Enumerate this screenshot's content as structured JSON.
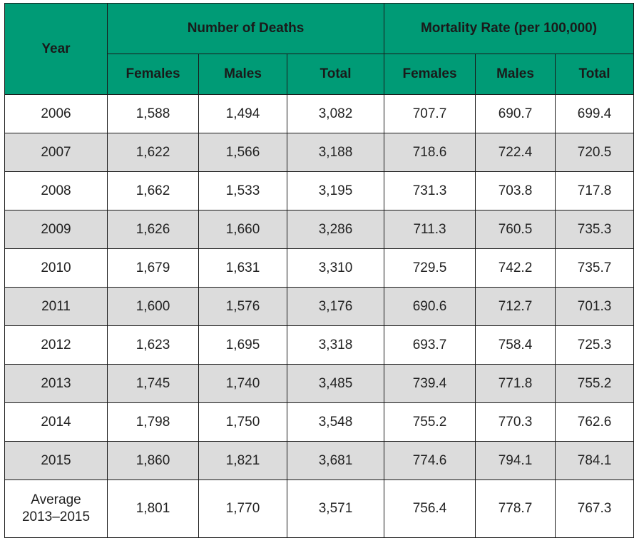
{
  "table": {
    "header": {
      "year": "Year",
      "deaths_group": "Number of Deaths",
      "rate_group": "Mortality Rate (per 100,000)",
      "sub": [
        "Females",
        "Males",
        "Total",
        "Females",
        "Males",
        "Total"
      ]
    },
    "rows": [
      {
        "year": "2006",
        "cells": [
          "1,588",
          "1,494",
          "3,082",
          "707.7",
          "690.7",
          "699.4"
        ]
      },
      {
        "year": "2007",
        "cells": [
          "1,622",
          "1,566",
          "3,188",
          "718.6",
          "722.4",
          "720.5"
        ]
      },
      {
        "year": "2008",
        "cells": [
          "1,662",
          "1,533",
          "3,195",
          "731.3",
          "703.8",
          "717.8"
        ]
      },
      {
        "year": "2009",
        "cells": [
          "1,626",
          "1,660",
          "3,286",
          "711.3",
          "760.5",
          "735.3"
        ]
      },
      {
        "year": "2010",
        "cells": [
          "1,679",
          "1,631",
          "3,310",
          "729.5",
          "742.2",
          "735.7"
        ]
      },
      {
        "year": "2011",
        "cells": [
          "1,600",
          "1,576",
          "3,176",
          "690.6",
          "712.7",
          "701.3"
        ]
      },
      {
        "year": "2012",
        "cells": [
          "1,623",
          "1,695",
          "3,318",
          "693.7",
          "758.4",
          "725.3"
        ]
      },
      {
        "year": "2013",
        "cells": [
          "1,745",
          "1,740",
          "3,485",
          "739.4",
          "771.8",
          "755.2"
        ]
      },
      {
        "year": "2014",
        "cells": [
          "1,798",
          "1,750",
          "3,548",
          "755.2",
          "770.3",
          "762.6"
        ]
      },
      {
        "year": "2015",
        "cells": [
          "1,860",
          "1,821",
          "3,681",
          "774.6",
          "794.1",
          "784.1"
        ]
      }
    ],
    "average": {
      "label_line1": "Average",
      "label_line2": "2013–2015",
      "cells": [
        "1,801",
        "1,770",
        "3,571",
        "756.4",
        "778.7",
        "767.3"
      ]
    },
    "colors": {
      "header_bg": "#009b76",
      "alt_row_bg": "#dcdcdc",
      "border": "#1a1a1a"
    }
  }
}
